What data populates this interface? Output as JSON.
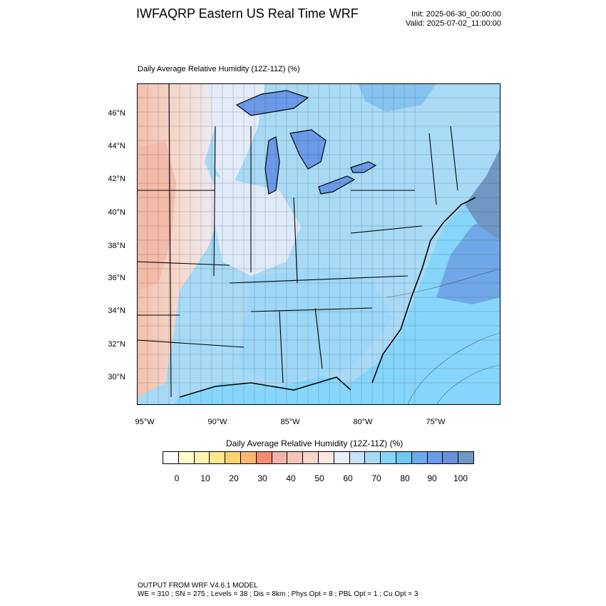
{
  "header": {
    "title": "IWFAQRP Eastern US Real Time WRF",
    "init": "Init: 2025-06-30_00:00:00",
    "valid": "Valid: 2025-07-02_11:00:00"
  },
  "plot": {
    "subtitle": "Daily Average Relative Humidity (12Z-11Z)   (%)",
    "lat_labels": [
      "46°N",
      "44°N",
      "42°N",
      "40°N",
      "38°N",
      "36°N",
      "34°N",
      "32°N",
      "30°N"
    ],
    "lon_labels": [
      "95°W",
      "90°W",
      "85°W",
      "80°W",
      "75°W"
    ]
  },
  "colorbar": {
    "title": "Daily Average Relative Humidity (12Z-11Z)   (%)",
    "colors": [
      "#ffffff",
      "#ffffcc",
      "#fff5b0",
      "#ffe88a",
      "#ffd270",
      "#ffb870",
      "#f58c70",
      "#f2b4aa",
      "#f5c4b8",
      "#f7d6cc",
      "#fae8e0",
      "#e8f0fc",
      "#c8e2f8",
      "#a8daf6",
      "#86d6fb",
      "#70c6f2",
      "#6aaaec",
      "#6a9ae8",
      "#6a90dc",
      "#6f98c4"
    ],
    "tick_labels": [
      "0",
      "10",
      "20",
      "30",
      "40",
      "50",
      "60",
      "70",
      "80",
      "90",
      "100"
    ]
  },
  "footer": {
    "line1": "OUTPUT FROM WRF V4.6.1 MODEL",
    "line2": "WE = 310 ; SN = 275 ; Levels = 38 ; Dis = 8km ; Phys Opt = 8 ; PBL Opt = 1 ; Cu Opt = 3"
  }
}
